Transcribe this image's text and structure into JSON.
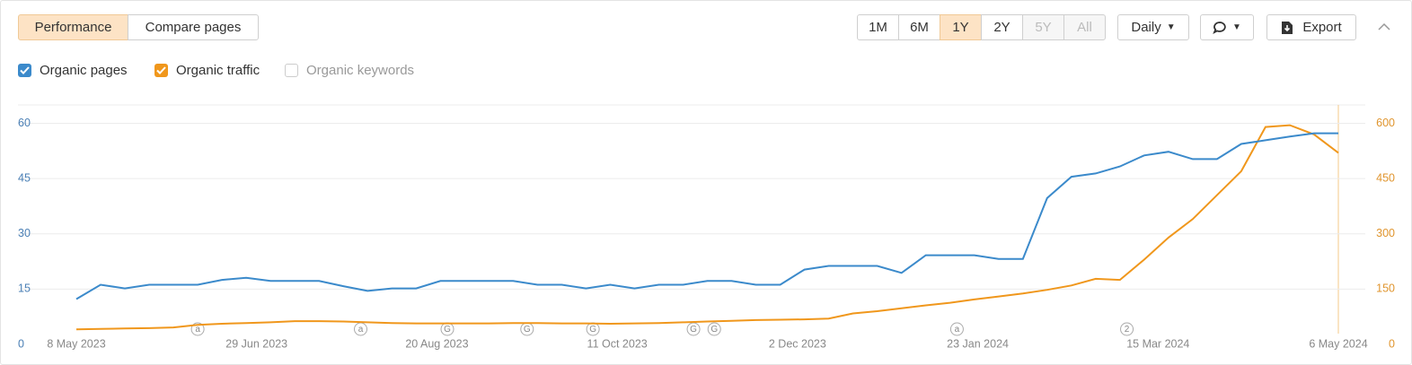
{
  "toolbar": {
    "tabs": [
      "Performance",
      "Compare pages"
    ],
    "ranges": [
      "1M",
      "6M",
      "1Y",
      "2Y",
      "5Y",
      "All"
    ],
    "interval": "Daily",
    "export": "Export",
    "unchecked_metric": "Organic keywords"
  },
  "chart_data": {
    "type": "line",
    "x": [
      "8 May 2023",
      "15 May 2023",
      "22 May 2023",
      "29 May 2023",
      "5 Jun 2023",
      "12 Jun 2023",
      "19 Jun 2023",
      "26 Jun 2023",
      "3 Jul 2023",
      "10 Jul 2023",
      "17 Jul 2023",
      "24 Jul 2023",
      "31 Jul 2023",
      "7 Aug 2023",
      "14 Aug 2023",
      "21 Aug 2023",
      "28 Aug 2023",
      "4 Sep 2023",
      "11 Sep 2023",
      "18 Sep 2023",
      "25 Sep 2023",
      "2 Oct 2023",
      "9 Oct 2023",
      "16 Oct 2023",
      "23 Oct 2023",
      "30 Oct 2023",
      "6 Nov 2023",
      "13 Nov 2023",
      "20 Nov 2023",
      "27 Nov 2023",
      "4 Dec 2023",
      "11 Dec 2023",
      "18 Dec 2023",
      "25 Dec 2023",
      "1 Jan 2024",
      "8 Jan 2024",
      "15 Jan 2024",
      "22 Jan 2024",
      "29 Jan 2024",
      "5 Feb 2024",
      "12 Feb 2024",
      "19 Feb 2024",
      "26 Feb 2024",
      "4 Mar 2024",
      "11 Mar 2024",
      "18 Mar 2024",
      "25 Mar 2024",
      "1 Apr 2024",
      "8 Apr 2024",
      "15 Apr 2024",
      "22 Apr 2024",
      "29 Apr 2024",
      "6 May 2024"
    ],
    "series": [
      {
        "name": "Organic pages",
        "color": "#3b8acb",
        "values": [
          12.3,
          16.2,
          15.2,
          16.2,
          16.2,
          16.2,
          17.5,
          18.1,
          17.2,
          17.2,
          17.2,
          15.8,
          14.5,
          15.2,
          15.2,
          17.2,
          17.2,
          17.2,
          17.2,
          16.2,
          16.2,
          15.2,
          16.2,
          15.2,
          16.2,
          16.2,
          17.2,
          17.2,
          16.2,
          16.2,
          20.3,
          21.3,
          21.3,
          21.3,
          19.4,
          24.2,
          24.2,
          24.2,
          23.2,
          23.2,
          39.7,
          45.5,
          46.4,
          48.3,
          51.3,
          52.3,
          50.3,
          50.3,
          54.4,
          55.4,
          56.4,
          57.3,
          57.3
        ]
      },
      {
        "name": "Organic traffic",
        "color": "#f0971c",
        "axis": "y2",
        "values": [
          41,
          42,
          43,
          44,
          46,
          53,
          56,
          58,
          60,
          63,
          63,
          62,
          60,
          58,
          57,
          57,
          57,
          57,
          58,
          58,
          57,
          57,
          56,
          57,
          58,
          60,
          62,
          64,
          66,
          67,
          68,
          70,
          84,
          90,
          98,
          106,
          113,
          122,
          130,
          138,
          148,
          160,
          178,
          175,
          230,
          290,
          340,
          405,
          470,
          590,
          595,
          570,
          520
        ]
      }
    ],
    "xlim": [
      "8 May 2023",
      "6 May 2024"
    ],
    "xticks": [
      "8 May 2023",
      "29 Jun 2023",
      "20 Aug 2023",
      "11 Oct 2023",
      "2 Dec 2023",
      "23 Jan 2024",
      "15 Mar 2024",
      "6 May 2024"
    ],
    "ylim": [
      0,
      65
    ],
    "yticks": [
      0,
      15,
      30,
      45,
      60
    ],
    "y2lim": [
      0,
      650
    ],
    "y2ticks": [
      0,
      150,
      300,
      450,
      600
    ],
    "grid": true,
    "annotations": [
      {
        "x": "12 Jun 2023",
        "label": "a"
      },
      {
        "x": "29 Jul 2023",
        "label": "a"
      },
      {
        "x": "23 Aug 2023",
        "label": "G"
      },
      {
        "x": "15 Sep 2023",
        "label": "G"
      },
      {
        "x": "4 Oct 2023",
        "label": "G"
      },
      {
        "x": "2 Nov 2023",
        "label": "G"
      },
      {
        "x": "8 Nov 2023",
        "label": "G"
      },
      {
        "x": "17 Jan 2024",
        "label": "a"
      },
      {
        "x": "6 Mar 2024",
        "label": "2"
      }
    ]
  }
}
